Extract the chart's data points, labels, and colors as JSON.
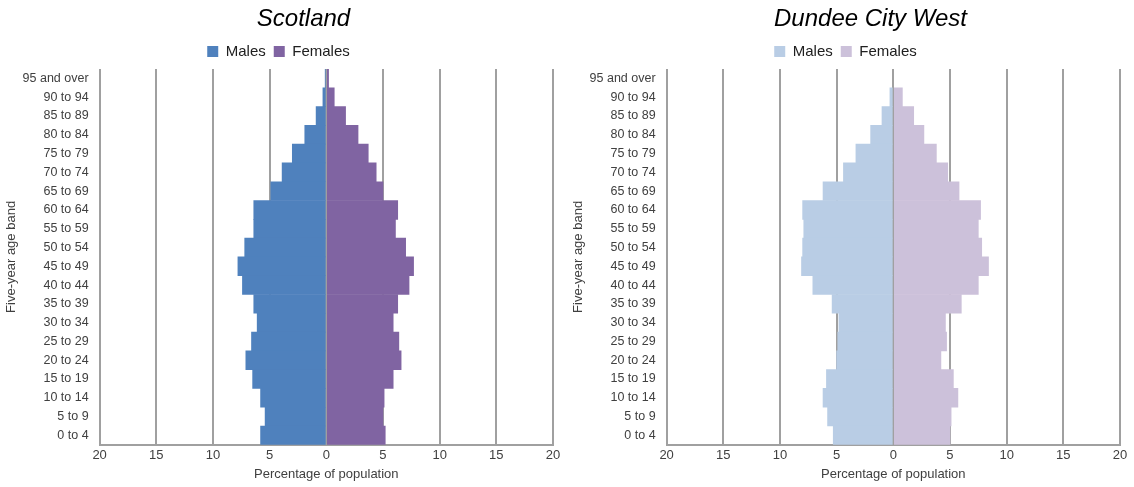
{
  "chart_data": [
    {
      "type": "bar",
      "orientation": "horizontal",
      "stacked": true,
      "title": "Scotland",
      "xlabel": "Percentage of population",
      "ylabel": "Five-year age band",
      "categories": [
        "95 and over",
        "90 to 94",
        "85 to 89",
        "80 to 84",
        "75 to 79",
        "70 to 74",
        "65 to 69",
        "60 to 64",
        "55 to 59",
        "50 to 54",
        "45 to 49",
        "40 to 44",
        "35 to 39",
        "30 to 34",
        "25 to 29",
        "20 to 24",
        "15 to 19",
        "10 to 14",
        "5 to 9",
        "0 to 4"
      ],
      "series": [
        {
          "name": "Males",
          "color": "#4f81bd",
          "values": [
            -0.1,
            -0.3,
            -0.9,
            -1.9,
            -3.0,
            -3.9,
            -4.9,
            -6.4,
            -6.4,
            -7.2,
            -7.8,
            -7.4,
            -6.4,
            -6.1,
            -6.6,
            -7.1,
            -6.5,
            -5.8,
            -5.4,
            -5.8
          ]
        },
        {
          "name": "Females",
          "color": "#8064a2",
          "values": [
            0.2,
            0.7,
            1.7,
            2.8,
            3.7,
            4.4,
            5.0,
            6.3,
            6.1,
            7.0,
            7.7,
            7.3,
            6.3,
            5.9,
            6.4,
            6.6,
            5.9,
            5.1,
            5.0,
            5.2
          ]
        }
      ],
      "xlim": [
        -20,
        20
      ],
      "xticks": [
        {
          "value": -20,
          "label": "20"
        },
        {
          "value": -15,
          "label": "15"
        },
        {
          "value": -10,
          "label": "10"
        },
        {
          "value": -5,
          "label": "5"
        },
        0,
        5,
        10,
        15,
        20
      ],
      "grid": "x",
      "legend": "top"
    },
    {
      "type": "bar",
      "orientation": "horizontal",
      "stacked": true,
      "title": "Dundee City West",
      "xlabel": "Percentage of population",
      "ylabel": "Five-year age band",
      "categories": [
        "95 and over",
        "90 to 94",
        "85 to 89",
        "80 to 84",
        "75 to 79",
        "70 to 74",
        "65 to 69",
        "60 to 64",
        "55 to 59",
        "50 to 54",
        "45 to 49",
        "40 to 44",
        "35 to 39",
        "30 to 34",
        "25 to 29",
        "20 to 24",
        "15 to 19",
        "10 to 14",
        "5 to 9",
        "0 to 4"
      ],
      "series": [
        {
          "name": "Males",
          "color": "#b9cde5",
          "values": [
            null,
            -0.3,
            -1.0,
            -2.0,
            -3.3,
            -4.4,
            -6.2,
            -8.0,
            -7.9,
            -8.0,
            -8.1,
            -7.1,
            -5.4,
            -4.8,
            -4.9,
            -5.0,
            -5.9,
            -6.2,
            -5.8,
            -5.3
          ]
        },
        {
          "name": "Females",
          "color": "#ccc1da",
          "values": [
            null,
            0.8,
            1.8,
            2.7,
            3.8,
            4.8,
            5.8,
            7.7,
            7.5,
            7.8,
            8.4,
            7.5,
            6.0,
            4.6,
            4.7,
            4.2,
            5.3,
            5.7,
            5.1,
            5.0
          ]
        }
      ],
      "xlim": [
        -20,
        20
      ],
      "xticks": [
        {
          "value": -20,
          "label": "20"
        },
        {
          "value": -15,
          "label": "15"
        },
        {
          "value": -10,
          "label": "10"
        },
        {
          "value": -5,
          "label": "5"
        },
        0,
        5,
        10,
        15,
        20
      ],
      "grid": "x",
      "legend": "top"
    }
  ]
}
